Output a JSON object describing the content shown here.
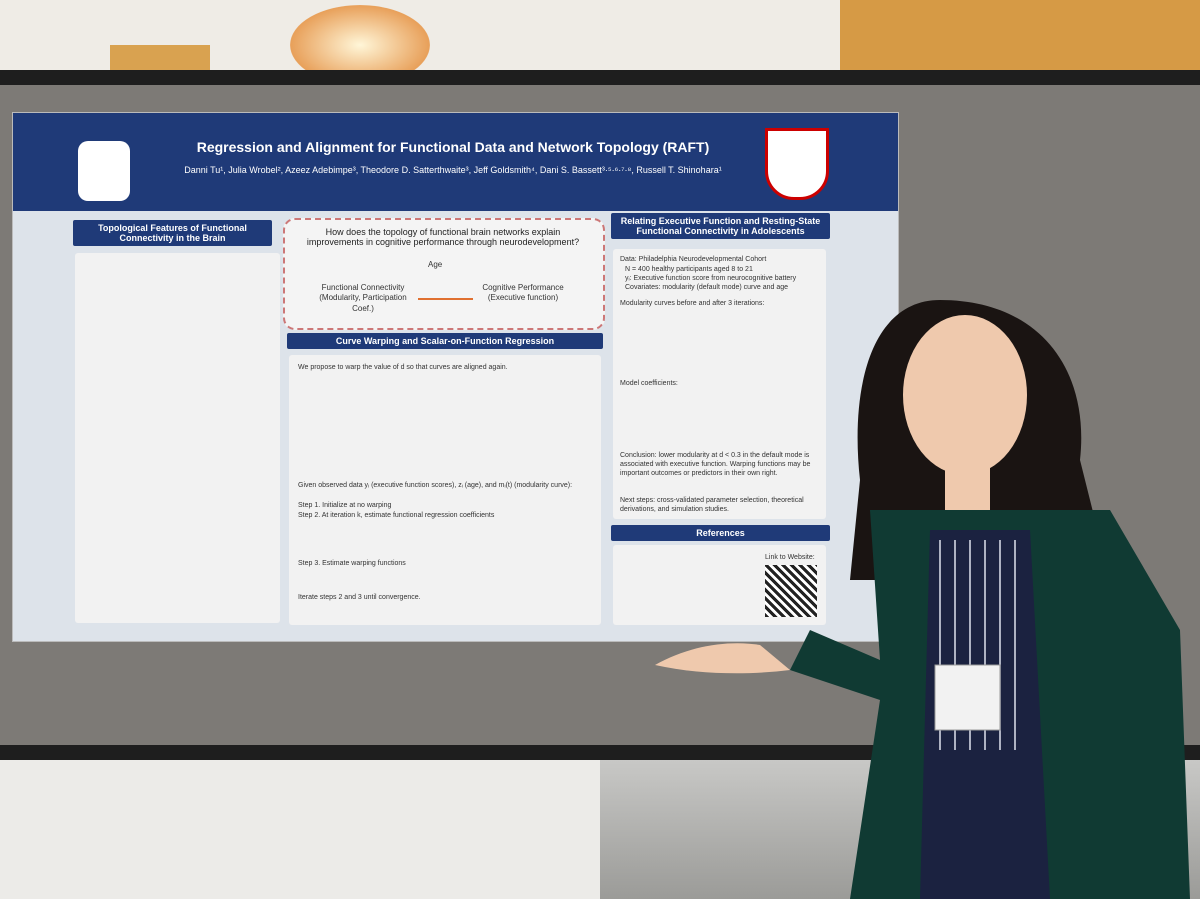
{
  "poster": {
    "title": "Regression and Alignment for Functional Data and Network Topology (RAFT)",
    "authors": "Danni Tu¹, Julia Wrobel², Azeez Adebimpe³, Theodore D. Satterthwaite³, Jeff Goldsmith⁴, Dani S. Bassett³·⁵·⁶·⁷·⁸, Russell T. Shinohara¹",
    "left_section": {
      "heading": "Topological Features of Functional Connectivity in the Brain"
    },
    "question": "How does the topology of functional brain networks explain improvements in cognitive performance through neurodevelopment?",
    "diagram": {
      "top": "Age",
      "left": "Functional Connectivity (Modularity, Participation Coef.)",
      "right": "Cognitive Performance (Executive function)"
    },
    "middle_section": {
      "heading": "Curve Warping and Scalar-on-Function Regression",
      "intro": "We propose to warp the value of d so that curves are aligned again.",
      "given": "Given observed data yᵢ (executive function scores), zᵢ (age), and mᵢ(t) (modularity curve):",
      "step1": "Step 1. Initialize at no warping",
      "step2": "Step 2. At iteration k, estimate functional regression coefficients",
      "step3": "Step 3. Estimate warping functions",
      "iterate": "Iterate steps 2 and 3 until convergence."
    },
    "right_section": {
      "heading": "Relating Executive Function and Resting-State Functional Connectivity in Adolescents",
      "data": "Data: Philadelphia Neurodevelopmental Cohort",
      "bullets": [
        "N = 400 healthy participants aged 8 to 21",
        "yᵢ: Executive function score from neurocognitive battery",
        "Covariates: modularity (default mode) curve and age"
      ],
      "curves_label": "Modularity curves before and after 3 iterations:",
      "coef_label": "Model coefficients:",
      "conclusion": "Conclusion: lower modularity at d < 0.3 in the default mode is associated with executive function. Warping functions may be important outcomes or predictors in their own right.",
      "next_steps": "Next steps: cross-validated parameter selection, theoretical derivations, and simulation studies."
    },
    "references": {
      "heading": "References",
      "link": "Link to Website:"
    }
  }
}
